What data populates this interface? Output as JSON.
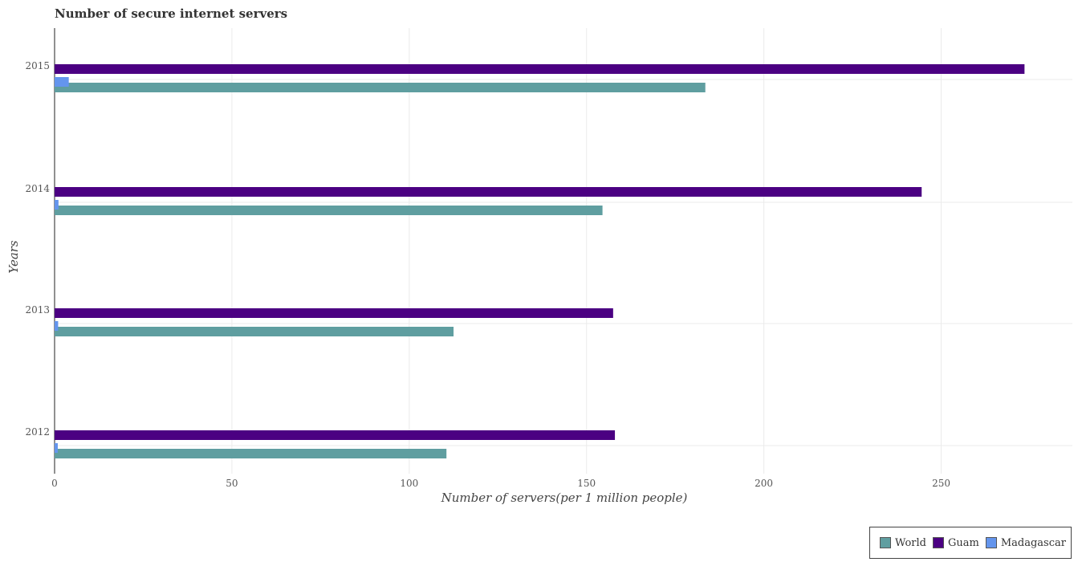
{
  "chart_data": {
    "type": "bar",
    "orientation": "horizontal",
    "title": "Number of secure internet servers",
    "xlabel": "Number of servers(per 1 million people)",
    "ylabel": "Years",
    "xlim": [
      0,
      287
    ],
    "xticks": [
      0,
      50,
      100,
      150,
      200,
      250
    ],
    "grid": true,
    "legend_position": "bottom-right",
    "categories": [
      "2012",
      "2013",
      "2014",
      "2015"
    ],
    "series": [
      {
        "name": "World",
        "color": "#5f9ea0",
        "values": [
          110.5,
          112.5,
          154.5,
          183.5
        ]
      },
      {
        "name": "Guam",
        "color": "#4b0082",
        "values": [
          158.0,
          157.5,
          244.5,
          273.5
        ]
      },
      {
        "name": "Madagascar",
        "color": "#6495ed",
        "values": [
          0.9,
          1.0,
          1.1,
          4.0
        ]
      }
    ]
  },
  "legend": {
    "items": [
      "World",
      "Guam",
      "Madagascar"
    ]
  }
}
